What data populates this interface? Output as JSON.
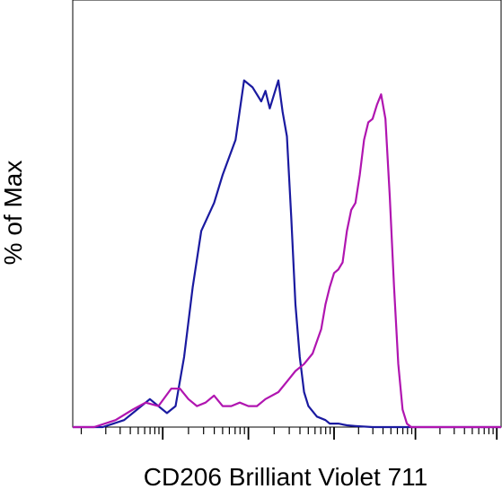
{
  "chart_data": {
    "type": "line",
    "title": "",
    "xlabel": "CD206 Brilliant Violet 711",
    "ylabel": "% of Max",
    "x_scale": "log (biexponential)",
    "xlim": [
      0,
      1
    ],
    "ylim": [
      0,
      100
    ],
    "grid": false,
    "legend": "none",
    "series": [
      {
        "color": "#1a1aa0",
        "x": [
          0.0,
          0.07,
          0.12,
          0.15,
          0.18,
          0.2,
          0.22,
          0.24,
          0.26,
          0.28,
          0.3,
          0.33,
          0.35,
          0.38,
          0.4,
          0.42,
          0.44,
          0.45,
          0.46,
          0.47,
          0.48,
          0.49,
          0.5,
          0.51,
          0.52,
          0.53,
          0.54,
          0.55,
          0.57,
          0.59,
          0.6,
          0.62,
          0.64,
          0.66,
          0.7,
          1.0
        ],
        "y": [
          0,
          0,
          2,
          5,
          8,
          6,
          4,
          6,
          20,
          40,
          56,
          64,
          72,
          82,
          99,
          97,
          93,
          96,
          91,
          95,
          99,
          90,
          83,
          60,
          35,
          20,
          10,
          6,
          3,
          2,
          1,
          1,
          0.5,
          0.3,
          0,
          0
        ]
      },
      {
        "color": "#b015b0",
        "x": [
          0.0,
          0.05,
          0.1,
          0.14,
          0.17,
          0.2,
          0.23,
          0.25,
          0.27,
          0.29,
          0.31,
          0.33,
          0.35,
          0.37,
          0.39,
          0.41,
          0.43,
          0.45,
          0.48,
          0.5,
          0.52,
          0.54,
          0.56,
          0.58,
          0.59,
          0.6,
          0.61,
          0.62,
          0.63,
          0.64,
          0.65,
          0.66,
          0.67,
          0.68,
          0.69,
          0.7,
          0.71,
          0.72,
          0.73,
          0.74,
          0.75,
          0.76,
          0.77,
          0.78,
          0.79,
          0.8,
          0.82,
          0.85,
          0.9,
          1.0
        ],
        "y": [
          0,
          0,
          2,
          5,
          7,
          6,
          11,
          11,
          8,
          6,
          7,
          9,
          6,
          6,
          7,
          6,
          6,
          8,
          10,
          13,
          16,
          18,
          21,
          28,
          35,
          40,
          44,
          45,
          47,
          56,
          62,
          64,
          72,
          82,
          87,
          88,
          92,
          95,
          88,
          66,
          40,
          18,
          5,
          1,
          0,
          0,
          0,
          0,
          0,
          0
        ]
      }
    ],
    "tick_labels": []
  }
}
